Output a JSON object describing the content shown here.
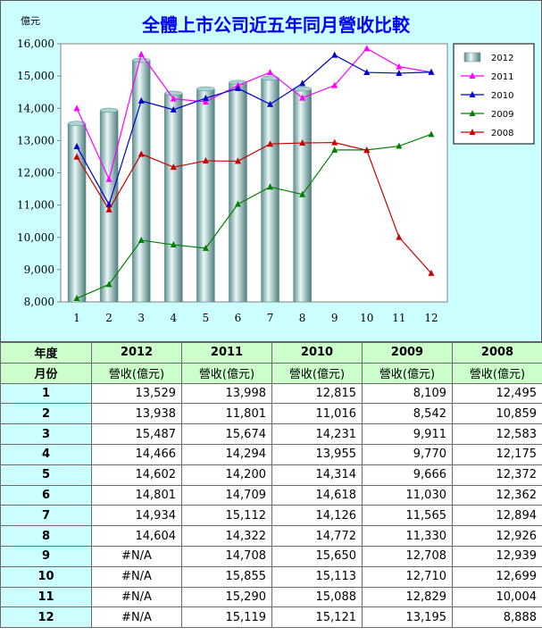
{
  "chart_data": {
    "type": "bar",
    "title": "全體上市公司近五年同月營收比較",
    "ylabel": "億元",
    "xlabel": "",
    "categories": [
      "1",
      "2",
      "3",
      "4",
      "5",
      "6",
      "7",
      "8",
      "9",
      "10",
      "11",
      "12"
    ],
    "ylim": [
      8000,
      16000
    ],
    "yticks": [
      8000,
      9000,
      10000,
      11000,
      12000,
      13000,
      14000,
      15000,
      16000
    ],
    "ytick_labels": [
      "8,000",
      "9,000",
      "10,000",
      "11,000",
      "12,000",
      "13,000",
      "14,000",
      "15,000",
      "16,000"
    ],
    "legend_position": "right",
    "grid": false,
    "bar_series": {
      "name": "2012",
      "color": "#8fc4c4",
      "values": [
        13529,
        13938,
        15487,
        14466,
        14602,
        14801,
        14934,
        14604,
        null,
        null,
        null,
        null
      ]
    },
    "line_series": [
      {
        "name": "2011",
        "color": "#ff00ff",
        "values": [
          13998,
          11801,
          15674,
          14294,
          14200,
          14709,
          15112,
          14322,
          14708,
          15855,
          15290,
          15119
        ]
      },
      {
        "name": "2010",
        "color": "#0000cc",
        "values": [
          12815,
          11016,
          14231,
          13955,
          14314,
          14618,
          14126,
          14772,
          15650,
          15113,
          15088,
          15121
        ]
      },
      {
        "name": "2009",
        "color": "#008000",
        "values": [
          8109,
          8542,
          9911,
          9770,
          9666,
          11030,
          11565,
          11330,
          12708,
          12710,
          12829,
          13195
        ]
      },
      {
        "name": "2008",
        "color": "#cc0000",
        "values": [
          12495,
          10859,
          12583,
          12175,
          12372,
          12362,
          12894,
          12926,
          12939,
          12699,
          10004,
          8888
        ]
      }
    ]
  },
  "table": {
    "year_header": "年度",
    "month_header": "月份",
    "years": [
      "2012",
      "2011",
      "2010",
      "2009",
      "2008"
    ],
    "unit_label": "營收(億元)",
    "rows": [
      {
        "month": "1",
        "values": [
          "13,529",
          "13,998",
          "12,815",
          "8,109",
          "12,495"
        ]
      },
      {
        "month": "2",
        "values": [
          "13,938",
          "11,801",
          "11,016",
          "8,542",
          "10,859"
        ]
      },
      {
        "month": "3",
        "values": [
          "15,487",
          "15,674",
          "14,231",
          "9,911",
          "12,583"
        ]
      },
      {
        "month": "4",
        "values": [
          "14,466",
          "14,294",
          "13,955",
          "9,770",
          "12,175"
        ]
      },
      {
        "month": "5",
        "values": [
          "14,602",
          "14,200",
          "14,314",
          "9,666",
          "12,372"
        ]
      },
      {
        "month": "6",
        "values": [
          "14,801",
          "14,709",
          "14,618",
          "11,030",
          "12,362"
        ]
      },
      {
        "month": "7",
        "values": [
          "14,934",
          "15,112",
          "14,126",
          "11,565",
          "12,894"
        ]
      },
      {
        "month": "8",
        "values": [
          "14,604",
          "14,322",
          "14,772",
          "11,330",
          "12,926"
        ]
      },
      {
        "month": "9",
        "values": [
          "#N/A",
          "14,708",
          "15,650",
          "12,708",
          "12,939"
        ]
      },
      {
        "month": "10",
        "values": [
          "#N/A",
          "15,855",
          "15,113",
          "12,710",
          "12,699"
        ]
      },
      {
        "month": "11",
        "values": [
          "#N/A",
          "15,290",
          "15,088",
          "12,829",
          "10,004"
        ]
      },
      {
        "month": "12",
        "values": [
          "#N/A",
          "15,119",
          "15,121",
          "13,195",
          "8,888"
        ]
      }
    ]
  }
}
